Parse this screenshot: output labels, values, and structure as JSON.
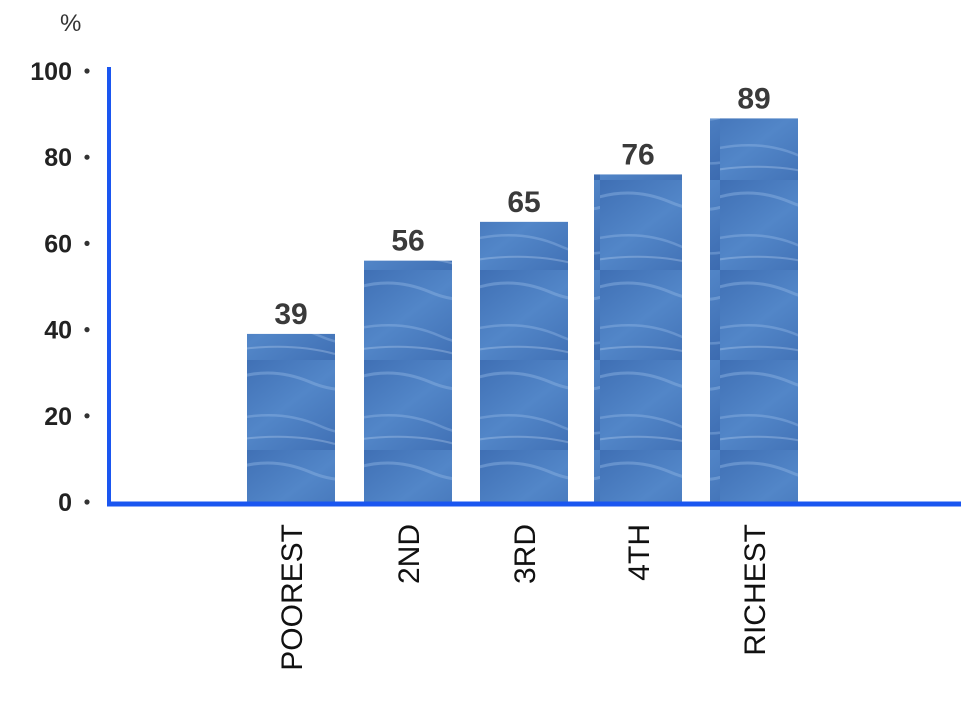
{
  "chart_data": {
    "type": "bar",
    "unit_label": "%",
    "categories": [
      "POOREST",
      "2ND",
      "3RD",
      "4TH",
      "RICHEST"
    ],
    "values": [
      39,
      56,
      65,
      76,
      89
    ],
    "value_labels": [
      "39",
      "56",
      "65",
      "76",
      "89"
    ],
    "y_ticks": [
      0,
      20,
      40,
      60,
      80,
      100
    ],
    "y_tick_labels": [
      "0",
      "20",
      "40",
      "60",
      "80",
      "100"
    ],
    "ylim": [
      0,
      100
    ],
    "grid": false,
    "colors": {
      "axis": "#1a56f0",
      "bar": "#4a7dc0",
      "bar_dark": "#3f6fb4",
      "bar_light": "#6f9bd4",
      "tick_dot": "#333333"
    }
  }
}
